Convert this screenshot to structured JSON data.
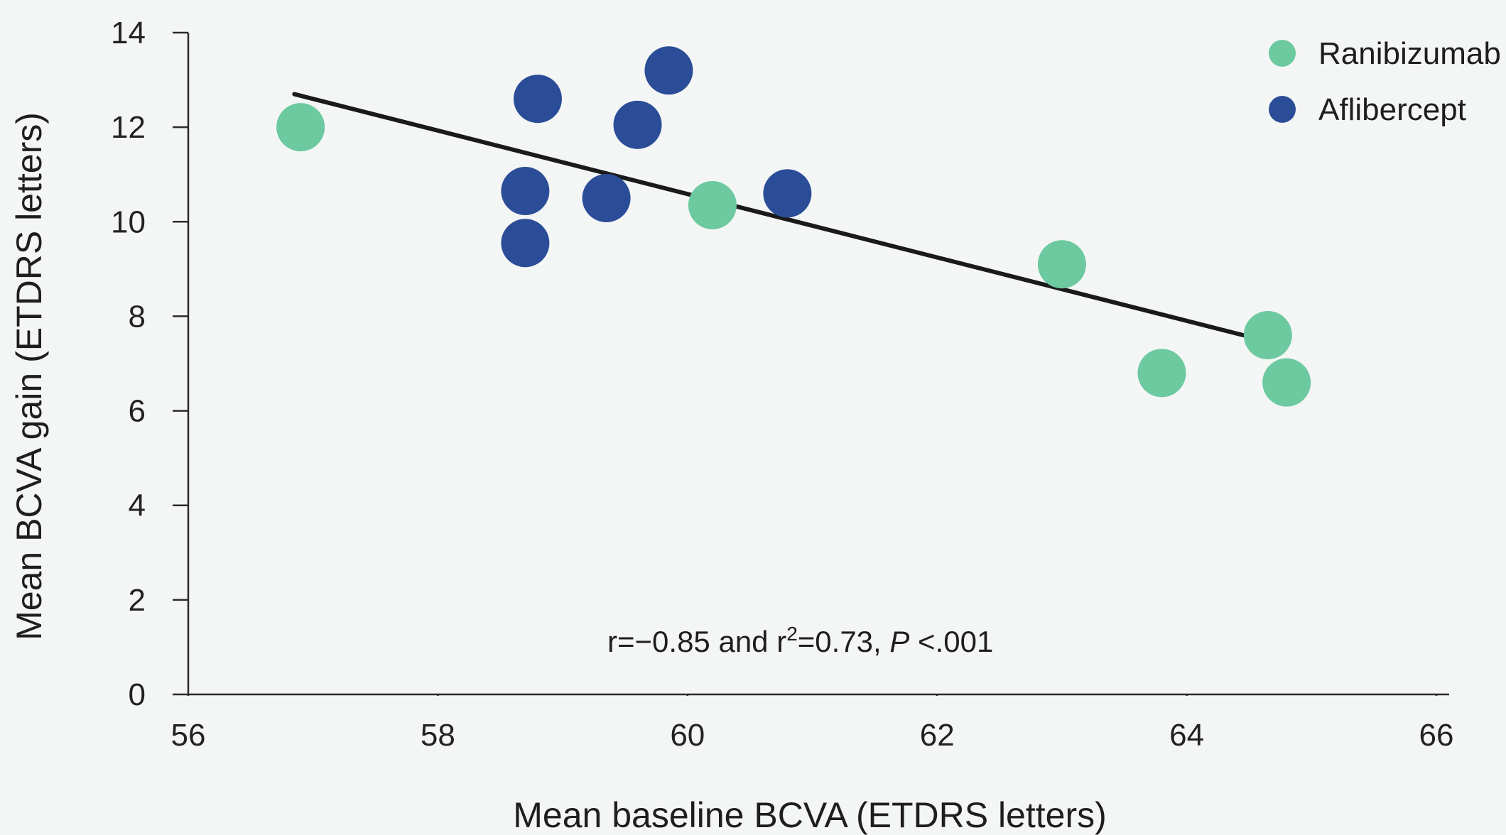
{
  "chart_data": {
    "type": "scatter",
    "title": "",
    "xlabel": "Mean baseline BCVA (ETDRS letters)",
    "ylabel": "Mean BCVA gain (ETDRS letters)",
    "xlim": [
      56,
      66
    ],
    "ylim": [
      0,
      14
    ],
    "x_ticks": [
      "56",
      "58",
      "60",
      "62",
      "64",
      "66"
    ],
    "y_ticks": [
      "0",
      "2",
      "4",
      "6",
      "8",
      "10",
      "12",
      "14"
    ],
    "grid": false,
    "legend_position": "top-right",
    "series": [
      {
        "name": "Ranibizumab",
        "color": "#6cc9a0",
        "points": [
          {
            "x": 56.9,
            "y": 12.0
          },
          {
            "x": 60.2,
            "y": 10.35
          },
          {
            "x": 63.0,
            "y": 9.1
          },
          {
            "x": 63.8,
            "y": 6.8
          },
          {
            "x": 64.65,
            "y": 7.6
          },
          {
            "x": 64.8,
            "y": 6.6
          }
        ]
      },
      {
        "name": "Aflibercept",
        "color": "#2b4d98",
        "points": [
          {
            "x": 58.8,
            "y": 12.6
          },
          {
            "x": 59.85,
            "y": 13.2
          },
          {
            "x": 59.6,
            "y": 12.05
          },
          {
            "x": 58.7,
            "y": 10.65
          },
          {
            "x": 59.35,
            "y": 10.5
          },
          {
            "x": 60.8,
            "y": 10.6
          },
          {
            "x": 58.7,
            "y": 9.55
          }
        ]
      }
    ],
    "trend_line": {
      "x1": 56.85,
      "y1": 12.7,
      "x2": 64.75,
      "y2": 7.4,
      "color": "#1a1a1a"
    },
    "annotation": {
      "prefix": "r=−0.85 and r",
      "superscript": "2",
      "middle": "=0.73, ",
      "italic": "P",
      "suffix": " <.001"
    }
  }
}
